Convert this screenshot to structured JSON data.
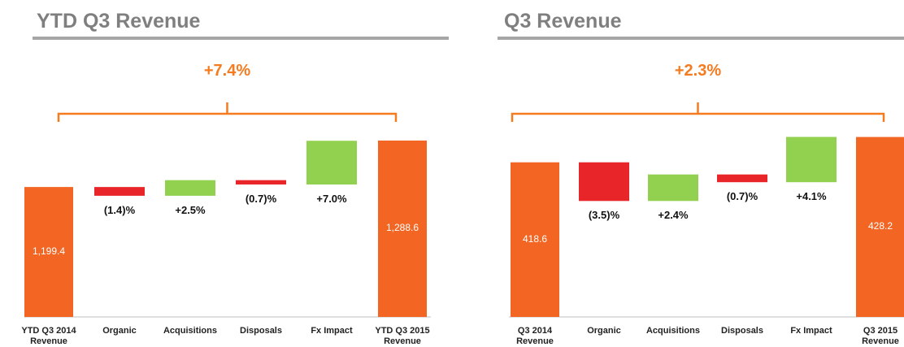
{
  "chart_data": [
    {
      "type": "waterfall",
      "title": "YTD Q3 Revenue",
      "annotation": "+7.4%",
      "categories": [
        "YTD Q3 2014 Revenue",
        "Organic",
        "Acquisitions",
        "Disposals",
        "Fx Impact",
        "YTD Q3 2015 Revenue"
      ],
      "values": [
        1199.4,
        -1.4,
        2.5,
        -0.7,
        7.0,
        1288.6
      ],
      "value_labels": [
        "1,199.4",
        "(1.4)%",
        "+2.5%",
        "(0.7)%",
        "+7.0%",
        "1,288.6"
      ],
      "colors": [
        "#f26522",
        "#e8262a",
        "#92d050",
        "#e8262a",
        "#92d050",
        "#f26522"
      ],
      "ylim": [
        950,
        1340
      ]
    },
    {
      "type": "waterfall",
      "title": "Q3 Revenue",
      "annotation": "+2.3%",
      "categories": [
        "Q3 2014 Revenue",
        "Organic",
        "Acquisitions",
        "Disposals",
        "Fx Impact",
        "Q3 2015 Revenue"
      ],
      "values": [
        418.6,
        -3.5,
        2.4,
        -0.7,
        4.1,
        428.2
      ],
      "value_labels": [
        "418.6",
        "(3.5)%",
        "+2.4%",
        "(0.7)%",
        "+4.1%",
        "428.2"
      ],
      "colors": [
        "#f26522",
        "#e8262a",
        "#92d050",
        "#e8262a",
        "#92d050",
        "#f26522"
      ],
      "ylim": [
        360,
        437
      ]
    }
  ]
}
